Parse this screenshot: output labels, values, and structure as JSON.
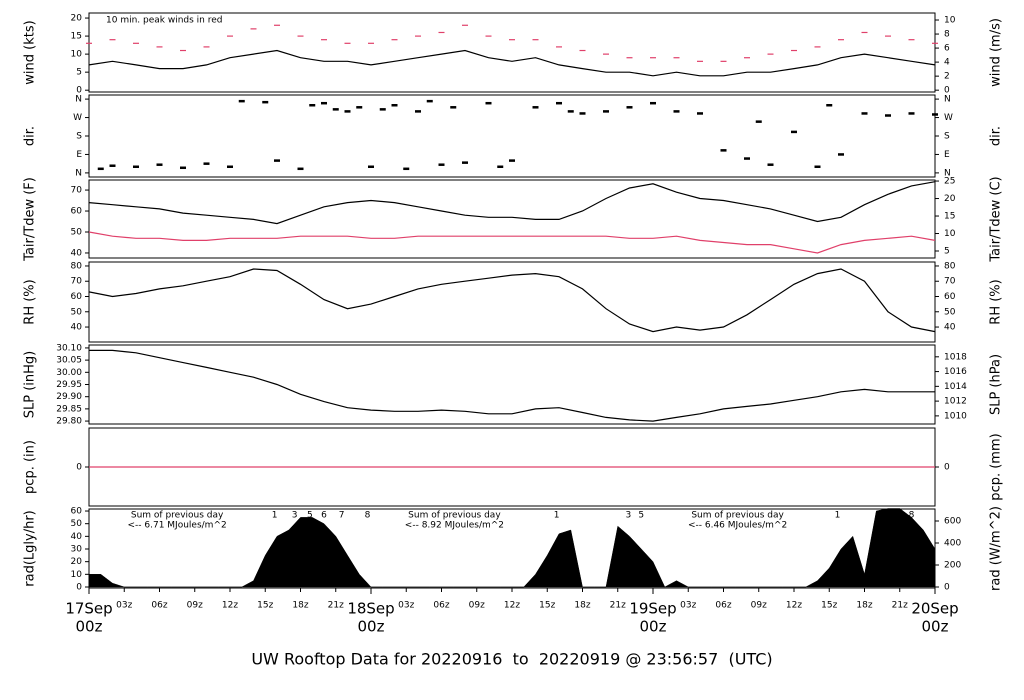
{
  "chart_data": [
    {
      "type": "line",
      "ylabel": "wind (kts)",
      "y2label": "wind (m/s)",
      "note": "10 min. peak winds in red",
      "note_color": "#e0406a",
      "ylim": [
        -0.5,
        21.4
      ],
      "yticks": [
        0,
        5,
        10,
        15,
        20
      ],
      "y2lim": [
        -0.26,
        11.0
      ],
      "y2ticks": [
        0,
        2,
        4,
        6,
        8,
        10
      ],
      "x": [
        0,
        2,
        4,
        6,
        8,
        10,
        12,
        14,
        16,
        18,
        20,
        22,
        24,
        26,
        28,
        30,
        32,
        34,
        36,
        38,
        40,
        42,
        44,
        46,
        48,
        50,
        52,
        54,
        56,
        58,
        60,
        62,
        64,
        66,
        68,
        70,
        72
      ],
      "series": [
        {
          "color": "#000000",
          "style": "line",
          "values": [
            7,
            8,
            7,
            6,
            6,
            7,
            9,
            10,
            11,
            9,
            8,
            8,
            7,
            8,
            9,
            10,
            11,
            9,
            8,
            9,
            7,
            6,
            5,
            5,
            4,
            5,
            4,
            4,
            5,
            5,
            6,
            7,
            9,
            10,
            9,
            8,
            7
          ]
        },
        {
          "color": "#e0406a",
          "style": "dash",
          "values": [
            13,
            14,
            13,
            12,
            11,
            12,
            15,
            17,
            18,
            15,
            14,
            13,
            13,
            14,
            15,
            16,
            18,
            15,
            14,
            14,
            12,
            11,
            10,
            9,
            9,
            9,
            8,
            8,
            9,
            10,
            11,
            12,
            14,
            16,
            15,
            14,
            13
          ]
        }
      ]
    },
    {
      "type": "scatter",
      "ylabel": "dir.",
      "ylim": [
        -20,
        380
      ],
      "yticks": [
        {
          "value": 0,
          "label": "N"
        },
        {
          "value": 90,
          "label": "E"
        },
        {
          "value": 180,
          "label": "S"
        },
        {
          "value": 270,
          "label": "W"
        },
        {
          "value": 360,
          "label": "N"
        }
      ],
      "y2lim": [
        -20,
        380
      ],
      "y2ticks": [
        {
          "value": 0,
          "label": "N"
        },
        {
          "value": 90,
          "label": "E"
        },
        {
          "value": 180,
          "label": "S"
        },
        {
          "value": 270,
          "label": "W"
        },
        {
          "value": 360,
          "label": "N"
        }
      ],
      "y2label": "dir.",
      "x": [
        1,
        2,
        4,
        6,
        8,
        10,
        12,
        13,
        15,
        16,
        18,
        19,
        20,
        21,
        22,
        23,
        24,
        25,
        26,
        27,
        28,
        29,
        30,
        31,
        32,
        34,
        35,
        36,
        38,
        40,
        41,
        42,
        44,
        46,
        48,
        50,
        52,
        54,
        56,
        57,
        58,
        60,
        62,
        63,
        64,
        66,
        68,
        70,
        72
      ],
      "series": [
        {
          "color": "#000000",
          "values": [
            20,
            35,
            30,
            40,
            25,
            45,
            30,
            350,
            345,
            60,
            20,
            330,
            340,
            310,
            300,
            320,
            30,
            310,
            330,
            20,
            300,
            350,
            40,
            320,
            50,
            340,
            30,
            60,
            320,
            340,
            300,
            290,
            300,
            320,
            340,
            300,
            290,
            110,
            70,
            250,
            40,
            200,
            30,
            330,
            90,
            290,
            280,
            290,
            285
          ]
        }
      ]
    },
    {
      "type": "line",
      "ylabel": "Tair/Tdew (F)",
      "y2label": "Tair/Tdew (C)",
      "ylim": [
        37.6,
        74.8
      ],
      "yticks": [
        40,
        50,
        60,
        70
      ],
      "y2lim": [
        3.0,
        25.3
      ],
      "y2ticks": [
        5,
        10,
        15,
        20,
        25
      ],
      "x": [
        0,
        2,
        4,
        6,
        8,
        10,
        12,
        14,
        16,
        18,
        20,
        22,
        24,
        26,
        28,
        30,
        32,
        34,
        36,
        38,
        40,
        42,
        44,
        46,
        48,
        50,
        52,
        54,
        56,
        58,
        60,
        62,
        64,
        66,
        68,
        70,
        72
      ],
      "series": [
        {
          "color": "#000000",
          "style": "line",
          "values": [
            64,
            63,
            62,
            61,
            59,
            58,
            57,
            56,
            54,
            58,
            62,
            64,
            65,
            64,
            62,
            60,
            58,
            57,
            57,
            56,
            56,
            60,
            66,
            71,
            73,
            69,
            66,
            65,
            63,
            61,
            58,
            55,
            57,
            63,
            68,
            72,
            74
          ]
        },
        {
          "color": "#e0406a",
          "style": "line",
          "values": [
            50,
            48,
            47,
            47,
            46,
            46,
            47,
            47,
            47,
            48,
            48,
            48,
            47,
            47,
            48,
            48,
            48,
            48,
            48,
            48,
            48,
            48,
            48,
            47,
            47,
            48,
            46,
            45,
            44,
            44,
            42,
            40,
            44,
            46,
            47,
            48,
            46
          ]
        }
      ]
    },
    {
      "type": "line",
      "ylabel": "RH (%)",
      "y2label": "RH (%)",
      "ylim": [
        30.2,
        82.6
      ],
      "yticks": [
        40,
        50,
        60,
        70,
        80
      ],
      "y2lim": [
        30.2,
        82.6
      ],
      "y2ticks": [
        40,
        50,
        60,
        70,
        80
      ],
      "x": [
        0,
        2,
        4,
        6,
        8,
        10,
        12,
        14,
        16,
        18,
        20,
        22,
        24,
        26,
        28,
        30,
        32,
        34,
        36,
        38,
        40,
        42,
        44,
        46,
        48,
        50,
        52,
        54,
        56,
        58,
        60,
        62,
        64,
        66,
        68,
        70,
        72
      ],
      "series": [
        {
          "color": "#000000",
          "style": "line",
          "values": [
            63,
            60,
            62,
            65,
            67,
            70,
            73,
            78,
            77,
            68,
            58,
            52,
            55,
            60,
            65,
            68,
            70,
            72,
            74,
            75,
            73,
            65,
            52,
            42,
            37,
            40,
            38,
            40,
            48,
            58,
            68,
            75,
            78,
            70,
            50,
            40,
            37
          ]
        }
      ]
    },
    {
      "type": "line",
      "ylabel": "SLP (inHg)",
      "y2label": "SLP (hPa)",
      "ylim": [
        29.788,
        30.112
      ],
      "yticks": [
        {
          "value": 30.1,
          "label": "30.10"
        },
        {
          "value": 30.05,
          "label": "30.05"
        },
        {
          "value": 30.0,
          "label": "30.00"
        },
        {
          "value": 29.95,
          "label": "29.95"
        },
        {
          "value": 29.9,
          "label": "29.90"
        },
        {
          "value": 29.85,
          "label": "29.85"
        },
        {
          "value": 29.8,
          "label": "29.80"
        }
      ],
      "y2lim": [
        1008.9,
        1019.6
      ],
      "y2ticks": [
        1010,
        1012,
        1014,
        1016,
        1018
      ],
      "x": [
        0,
        2,
        4,
        6,
        8,
        10,
        12,
        14,
        16,
        18,
        20,
        22,
        24,
        26,
        28,
        30,
        32,
        34,
        36,
        38,
        40,
        42,
        44,
        46,
        48,
        50,
        52,
        54,
        56,
        58,
        60,
        62,
        64,
        66,
        68,
        70,
        72
      ],
      "series": [
        {
          "color": "#000000",
          "style": "line",
          "values": [
            30.09,
            30.09,
            30.08,
            30.06,
            30.04,
            30.02,
            30.0,
            29.98,
            29.95,
            29.91,
            29.88,
            29.855,
            29.845,
            29.84,
            29.84,
            29.845,
            29.84,
            29.83,
            29.83,
            29.85,
            29.855,
            29.835,
            29.815,
            29.805,
            29.8,
            29.815,
            29.83,
            29.85,
            29.86,
            29.87,
            29.885,
            29.9,
            29.92,
            29.93,
            29.92,
            29.92,
            29.92
          ]
        }
      ]
    },
    {
      "type": "line",
      "ylabel": "pcp. (in)",
      "y2label": "pcp. (mm)",
      "ylim": [
        -1,
        1
      ],
      "yticks": [
        0
      ],
      "y2lim": [
        -25.4,
        25.4
      ],
      "y2ticks": [
        0
      ],
      "x": [
        0,
        2,
        4,
        6,
        8,
        10,
        12,
        14,
        16,
        18,
        20,
        22,
        24,
        26,
        28,
        30,
        32,
        34,
        36,
        38,
        40,
        42,
        44,
        46,
        48,
        50,
        52,
        54,
        56,
        58,
        60,
        62,
        64,
        66,
        68,
        70,
        72
      ],
      "series": [
        {
          "color": "#e0406a",
          "style": "line",
          "values": [
            0,
            0,
            0,
            0,
            0,
            0,
            0,
            0,
            0,
            0,
            0,
            0,
            0,
            0,
            0,
            0,
            0,
            0,
            0,
            0,
            0,
            0,
            0,
            0,
            0,
            0,
            0,
            0,
            0,
            0,
            0,
            0,
            0,
            0,
            0,
            0,
            0
          ]
        }
      ]
    },
    {
      "type": "area",
      "ylabel": "rad(Lgly/hr)",
      "y2label": "rad (W/m^2)",
      "ylim": [
        -0.8,
        61.6
      ],
      "yticks": [
        0,
        10,
        20,
        30,
        40,
        50,
        60
      ],
      "y2lim": [
        -9,
        709
      ],
      "y2ticks": [
        0,
        200,
        400,
        600
      ],
      "x": [
        0,
        1,
        2,
        3,
        4,
        5,
        6,
        7,
        8,
        9,
        10,
        11,
        12,
        13,
        14,
        15,
        16,
        17,
        18,
        19,
        20,
        21,
        22,
        23,
        24,
        25,
        26,
        27,
        28,
        29,
        30,
        31,
        32,
        33,
        34,
        35,
        36,
        37,
        38,
        39,
        40,
        41,
        42,
        43,
        44,
        45,
        46,
        47,
        48,
        49,
        50,
        51,
        52,
        53,
        54,
        55,
        56,
        57,
        58,
        59,
        60,
        61,
        62,
        63,
        64,
        65,
        66,
        67,
        68,
        69,
        70,
        71,
        72
      ],
      "series": [
        {
          "color": "#000000",
          "values": [
            10,
            10,
            3,
            0,
            0,
            0,
            0,
            0,
            0,
            0,
            0,
            0,
            0,
            0,
            5,
            25,
            40,
            45,
            55,
            55,
            50,
            40,
            25,
            10,
            0,
            0,
            0,
            0,
            0,
            0,
            0,
            0,
            0,
            0,
            0,
            0,
            0,
            0,
            10,
            25,
            42,
            45,
            0,
            0,
            0,
            48,
            40,
            30,
            20,
            0,
            5,
            0,
            0,
            0,
            0,
            0,
            0,
            0,
            0,
            0,
            0,
            0,
            5,
            15,
            30,
            40,
            10,
            60,
            62,
            62,
            55,
            45,
            30
          ]
        }
      ],
      "annotation_color": "#a020f0",
      "notes": [
        {
          "title": "Sum of previous day",
          "text": "<-- 6.71 MJoules/m^2",
          "x": 7.5
        },
        {
          "title": "Sum of previous day",
          "text": "<-- 8.92 MJoules/m^2",
          "x": 31.1
        },
        {
          "title": "Sum of previous day",
          "text": "<-- 6.46 MJoules/m^2",
          "x": 55.2
        }
      ],
      "annotations": [
        {
          "text": "1",
          "x": 15.8
        },
        {
          "text": "3",
          "x": 17.5
        },
        {
          "text": "5",
          "x": 18.8
        },
        {
          "text": "6",
          "x": 20
        },
        {
          "text": "7",
          "x": 21.5
        },
        {
          "text": "8",
          "x": 23.7
        },
        {
          "text": "1",
          "x": 39.8
        },
        {
          "text": "3",
          "x": 45.9
        },
        {
          "text": "5",
          "x": 47
        },
        {
          "text": "1",
          "x": 63.7
        },
        {
          "text": "8",
          "x": 70
        }
      ]
    }
  ],
  "time_axis": {
    "xlim": [
      0,
      72
    ],
    "xticks": [
      {
        "value": 3,
        "label": "03z"
      },
      {
        "value": 6,
        "label": "06z"
      },
      {
        "value": 9,
        "label": "09z"
      },
      {
        "value": 12,
        "label": "12z"
      },
      {
        "value": 15,
        "label": "15z"
      },
      {
        "value": 18,
        "label": "18z"
      },
      {
        "value": 21,
        "label": "21z"
      },
      {
        "value": 27,
        "label": "03z"
      },
      {
        "value": 30,
        "label": "06z"
      },
      {
        "value": 33,
        "label": "09z"
      },
      {
        "value": 36,
        "label": "12z"
      },
      {
        "value": 39,
        "label": "15z"
      },
      {
        "value": 42,
        "label": "18z"
      },
      {
        "value": 45,
        "label": "21z"
      },
      {
        "value": 51,
        "label": "03z"
      },
      {
        "value": 54,
        "label": "06z"
      },
      {
        "value": 57,
        "label": "09z"
      },
      {
        "value": 60,
        "label": "12z"
      },
      {
        "value": 63,
        "label": "15z"
      },
      {
        "value": 66,
        "label": "18z"
      },
      {
        "value": 69,
        "label": "21z"
      }
    ],
    "day_ticks": [
      {
        "value": 0,
        "label": "17Sep",
        "hour": "00z"
      },
      {
        "value": 24,
        "label": "18Sep",
        "hour": "00z"
      },
      {
        "value": 48,
        "label": "19Sep",
        "hour": "00z"
      },
      {
        "value": 72,
        "label": "20Sep",
        "hour": "00z"
      }
    ],
    "day_color": "#e0406a"
  },
  "footer": {
    "text": "UW Rooftop Data for 20220916  to  20220919 @ 23:56:57  (UTC)",
    "color": "#2e8bd0"
  }
}
